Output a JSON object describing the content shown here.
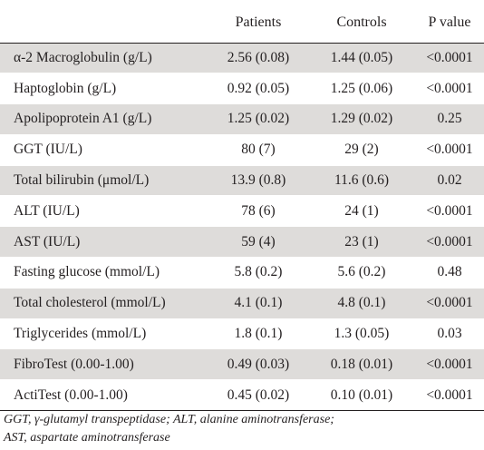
{
  "table": {
    "headers": [
      "",
      "Patients",
      "Controls",
      "P  value"
    ],
    "rows": [
      {
        "name": "α-2 Macroglobulin (g/L)",
        "patients": "2.56 (0.08)",
        "controls": "1.44 (0.05)",
        "p": "<0.0001"
      },
      {
        "name": "Haptoglobin (g/L)",
        "patients": "0.92 (0.05)",
        "controls": "1.25 (0.06)",
        "p": "<0.0001"
      },
      {
        "name": "Apolipoprotein A1 (g/L)",
        "patients": "1.25 (0.02)",
        "controls": "1.29 (0.02)",
        "p": "0.25"
      },
      {
        "name": "GGT (IU/L)",
        "patients": "80 (7)",
        "controls": "29 (2)",
        "p": "<0.0001"
      },
      {
        "name": "Total bilirubin (μmol/L)",
        "patients": "13.9 (0.8)",
        "controls": "11.6 (0.6)",
        "p": "0.02"
      },
      {
        "name": "ALT (IU/L)",
        "patients": "78 (6)",
        "controls": "24 (1)",
        "p": "<0.0001"
      },
      {
        "name": "AST (IU/L)",
        "patients": "59 (4)",
        "controls": "23 (1)",
        "p": "<0.0001"
      },
      {
        "name": "Fasting glucose (mmol/L)",
        "patients": "5.8 (0.2)",
        "controls": "5.6 (0.2)",
        "p": "0.48"
      },
      {
        "name": "Total cholesterol (mmol/L)",
        "patients": "4.1 (0.1)",
        "controls": "4.8 (0.1)",
        "p": "<0.0001"
      },
      {
        "name": "Triglycerides (mmol/L)",
        "patients": "1.8 (0.1)",
        "controls": "1.3 (0.05)",
        "p": "0.03"
      },
      {
        "name": "FibroTest (0.00-1.00)",
        "patients": "0.49 (0.03)",
        "controls": "0.18 (0.01)",
        "p": "<0.0001"
      },
      {
        "name": "ActiTest (0.00-1.00)",
        "patients": "0.45 (0.02)",
        "controls": "0.10 (0.01)",
        "p": "<0.0001"
      }
    ]
  },
  "footnote": {
    "line1": "GGT, γ-glutamyl transpeptidase; ALT, alanine aminotransferase;",
    "line2": "AST, aspartate aminotransferase"
  },
  "colors": {
    "shade": "#dedcda",
    "text": "#231f20",
    "background": "#ffffff"
  }
}
